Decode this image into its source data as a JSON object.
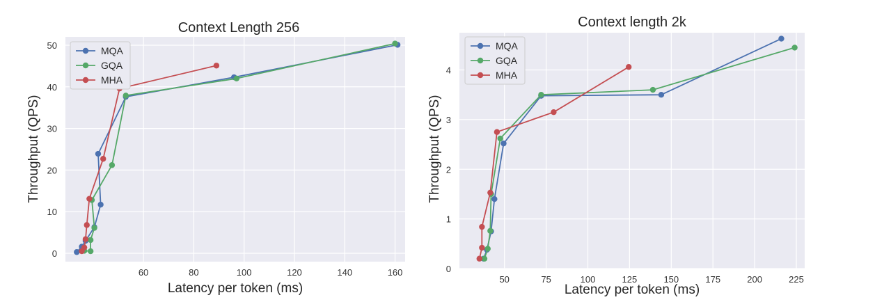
{
  "chart_data": [
    {
      "type": "line",
      "title": "Context Length 256",
      "xlabel": "Latency per token (ms)",
      "ylabel": "Throughput (QPS)",
      "xlim": [
        29,
        164
      ],
      "ylim": [
        -2,
        52
      ],
      "xticks": [
        60,
        80,
        100,
        120,
        140,
        160
      ],
      "yticks": [
        0,
        10,
        20,
        30,
        40,
        50
      ],
      "grid": true,
      "legend_position": "top-left",
      "series": [
        {
          "name": "MQA",
          "color": "#4C72B0",
          "points": [
            [
              33.5,
              0.3
            ],
            [
              35.5,
              1.6
            ],
            [
              37,
              3.0
            ],
            [
              40.5,
              6.3
            ],
            [
              43,
              11.7
            ],
            [
              42,
              23.9
            ],
            [
              53,
              37.6
            ],
            [
              96,
              42.3
            ],
            [
              161,
              50.1
            ]
          ]
        },
        {
          "name": "GQA",
          "color": "#55A868",
          "points": [
            [
              36.5,
              0.6
            ],
            [
              39,
              0.5
            ],
            [
              39,
              3.2
            ],
            [
              40.5,
              6.1
            ],
            [
              39.5,
              12.8
            ],
            [
              47.5,
              21.2
            ],
            [
              53,
              37.9
            ],
            [
              97,
              42.0
            ],
            [
              160,
              50.4
            ]
          ]
        },
        {
          "name": "MHA",
          "color": "#C44E52",
          "points": [
            [
              35.5,
              0.5
            ],
            [
              36.5,
              1.4
            ],
            [
              37,
              3.4
            ],
            [
              37.5,
              6.8
            ],
            [
              38.5,
              13.1
            ],
            [
              44,
              22.7
            ],
            [
              50.5,
              39.6
            ],
            [
              89,
              45.1
            ]
          ]
        }
      ]
    },
    {
      "type": "line",
      "title": "Context length 2k",
      "xlabel": "Latency per token (ms)",
      "ylabel": "Throughput (QPS)",
      "xlim": [
        23,
        230
      ],
      "ylim": [
        0,
        4.75
      ],
      "xticks": [
        50,
        75,
        100,
        125,
        150,
        175,
        200,
        225
      ],
      "yticks": [
        0,
        1,
        2,
        3,
        4
      ],
      "grid": true,
      "legend_position": "top-left",
      "series": [
        {
          "name": "MQA",
          "color": "#4C72B0",
          "points": [
            [
              37.5,
              0.2
            ],
            [
              39.5,
              0.38
            ],
            [
              42,
              0.75
            ],
            [
              44,
              1.4
            ],
            [
              49.5,
              2.52
            ],
            [
              72,
              3.48
            ],
            [
              144,
              3.5
            ],
            [
              216,
              4.63
            ]
          ]
        },
        {
          "name": "GQA",
          "color": "#55A868",
          "points": [
            [
              38,
              0.2
            ],
            [
              40,
              0.4
            ],
            [
              41.5,
              0.76
            ],
            [
              42,
              1.5
            ],
            [
              47.5,
              2.62
            ],
            [
              72,
              3.5
            ],
            [
              139,
              3.6
            ],
            [
              224,
              4.45
            ]
          ]
        },
        {
          "name": "MHA",
          "color": "#C44E52",
          "points": [
            [
              35,
              0.2
            ],
            [
              36.5,
              0.42
            ],
            [
              36.5,
              0.84
            ],
            [
              41.5,
              1.53
            ],
            [
              45.5,
              2.75
            ],
            [
              79.5,
              3.15
            ],
            [
              124.5,
              4.06
            ]
          ]
        }
      ]
    }
  ]
}
